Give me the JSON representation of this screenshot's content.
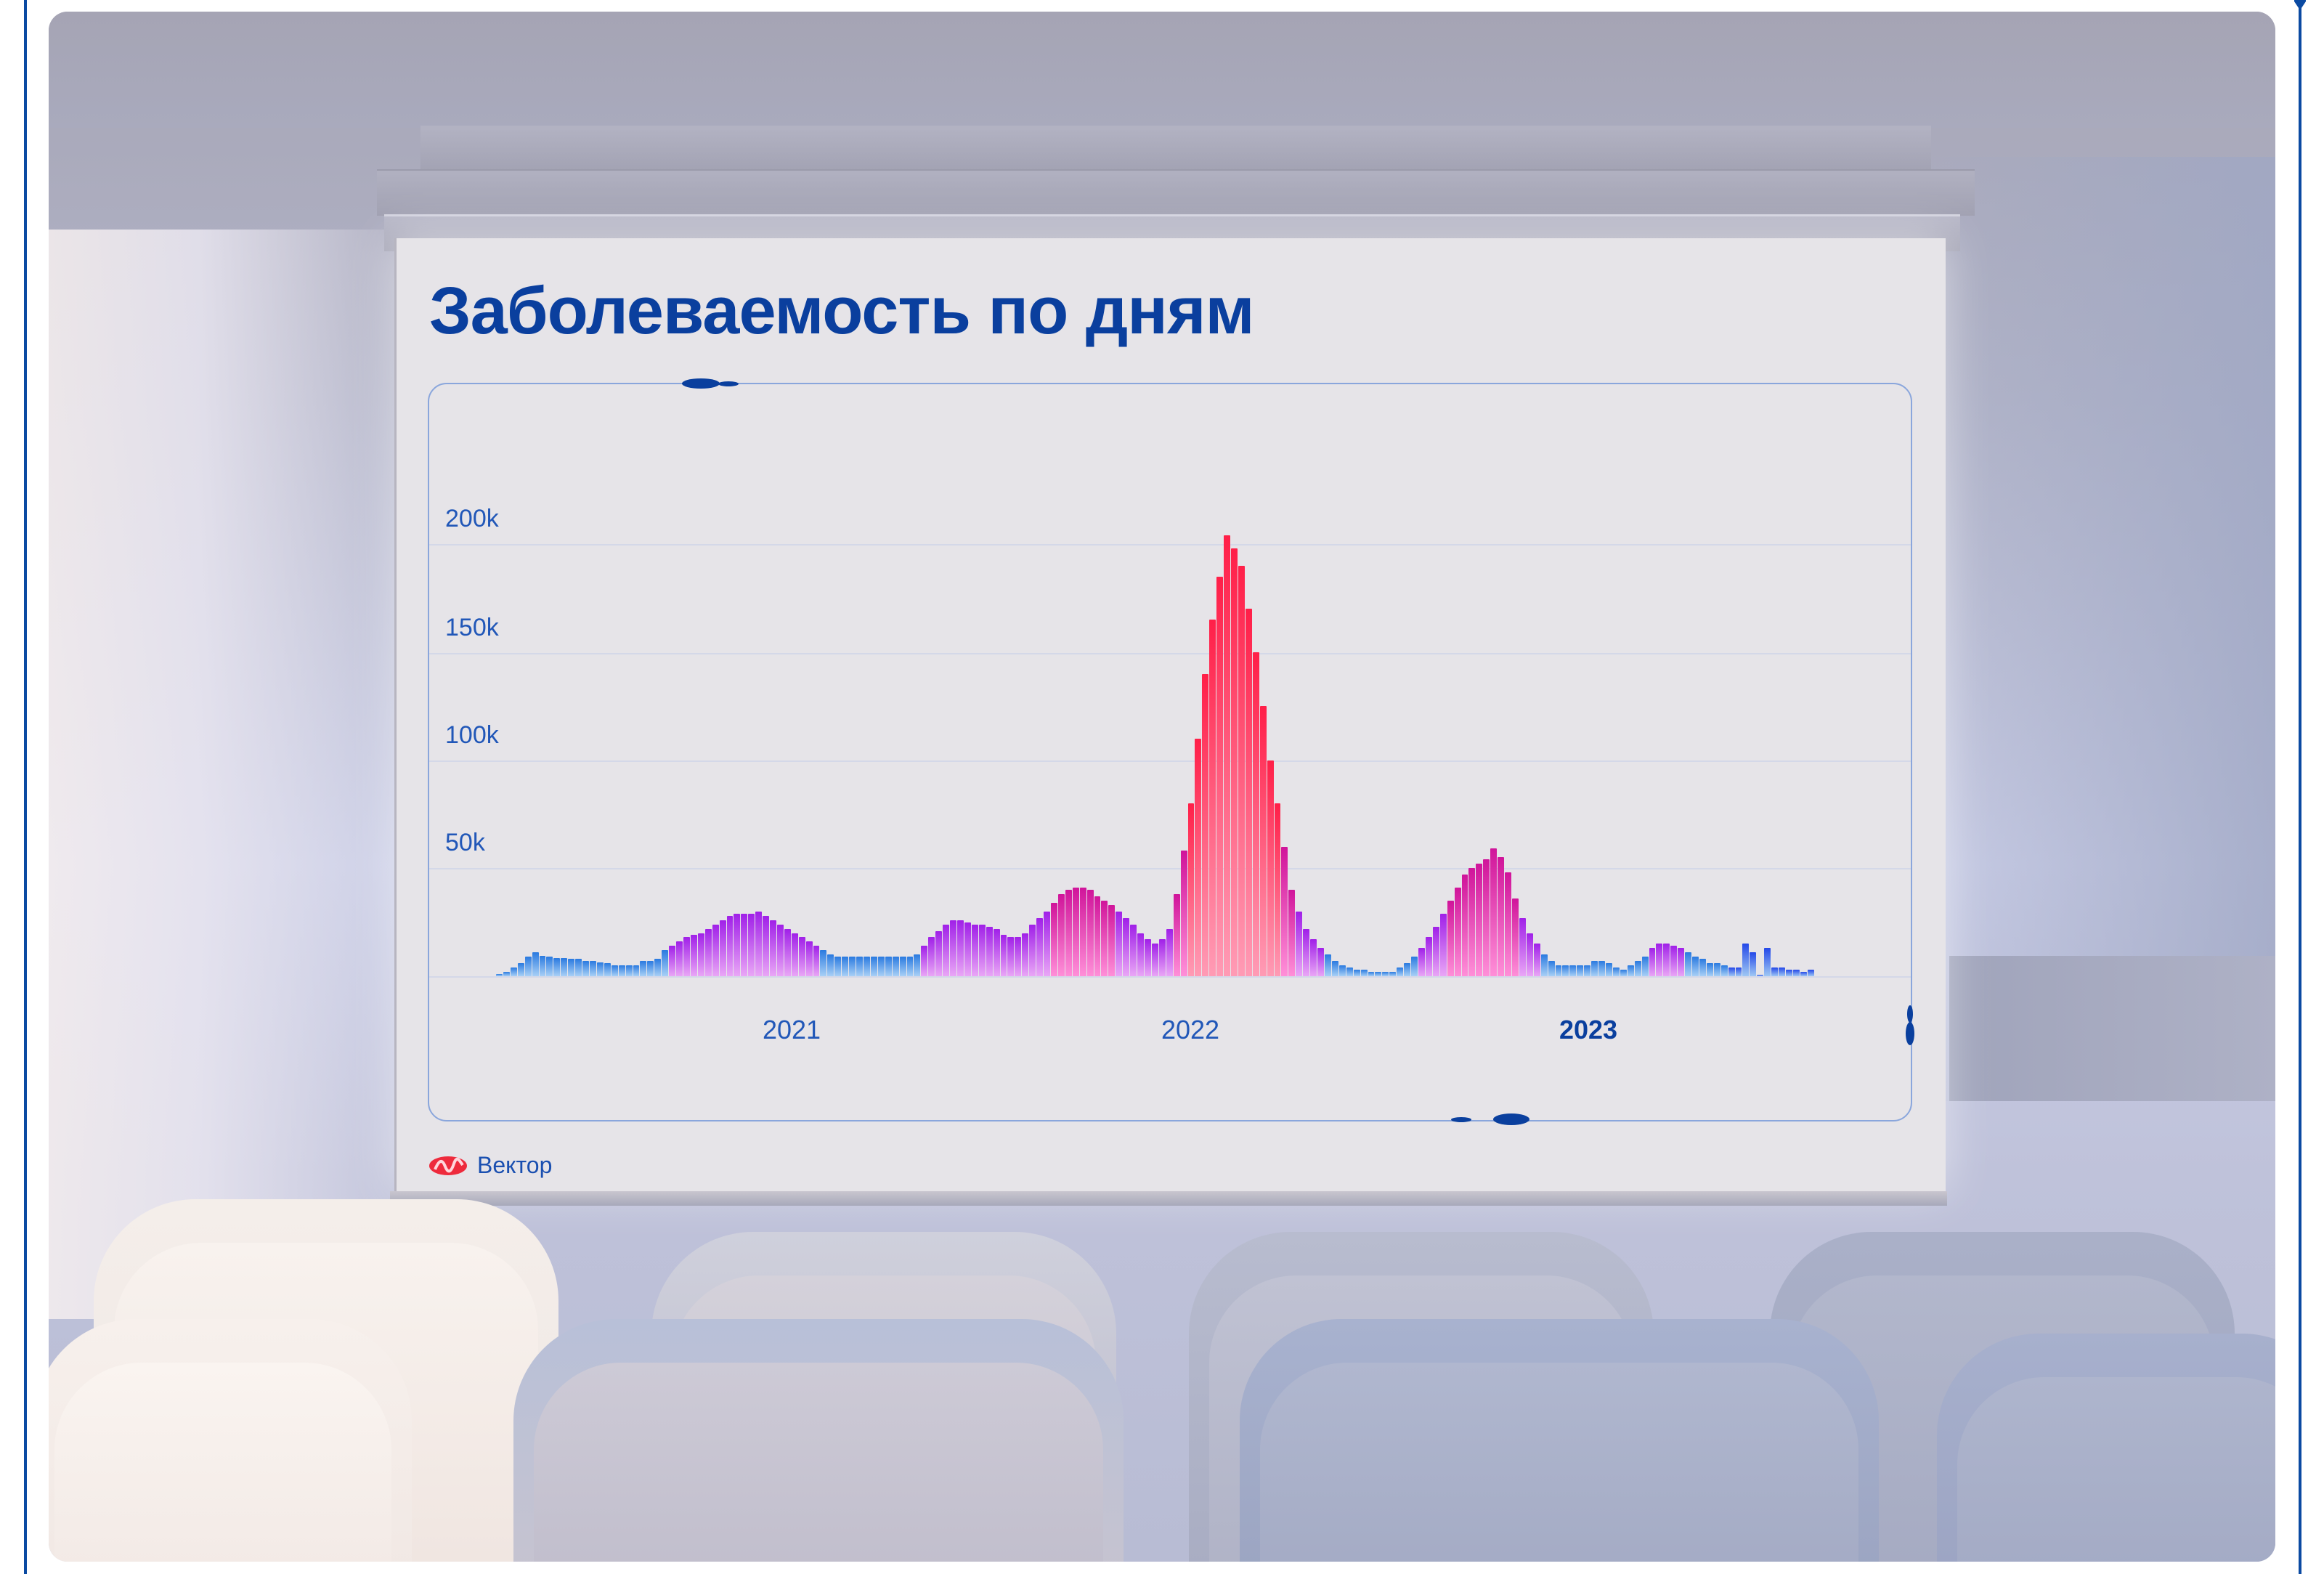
{
  "slide": {
    "title": "Заболеваемость по дням",
    "logo_text": "Вектор",
    "logo_icon": "vector-wave-logo"
  },
  "colors": {
    "title": "#0a3f9e",
    "axis_text": "#2157b8",
    "low_bar": "#2a7ae0",
    "mid_bar": "#a020e8",
    "high_bar": "#ff1f48",
    "logo_red": "#ee2a3c"
  },
  "chart_data": {
    "type": "bar",
    "title": "Заболеваемость по дням",
    "xlabel": "",
    "ylabel": "",
    "ylim": [
      0,
      200000
    ],
    "y_ticks": [
      "50k",
      "100k",
      "150k",
      "200k"
    ],
    "y_tick_values": [
      50000,
      100000,
      150000,
      200000
    ],
    "x_ticks": [
      "2021",
      "2022",
      "2023"
    ],
    "x_tick_bold": "2023",
    "grid": true,
    "legend": null,
    "x_range": [
      "2020 (approx. April)",
      "2023 (approx. Jun)"
    ],
    "values": [
      1000,
      2000,
      4000,
      6000,
      9000,
      11000,
      9500,
      9000,
      8500,
      8500,
      8000,
      8000,
      7000,
      7000,
      6500,
      6000,
      5000,
      5000,
      5000,
      5000,
      7000,
      7000,
      8000,
      12000,
      14000,
      16000,
      18000,
      19000,
      20000,
      22000,
      24000,
      26000,
      28000,
      29000,
      29000,
      29000,
      30000,
      28000,
      26000,
      24000,
      22000,
      20000,
      18000,
      16000,
      14000,
      12000,
      10000,
      9000,
      9000,
      9000,
      9000,
      9000,
      9000,
      9000,
      9000,
      9000,
      9000,
      9000,
      10000,
      14000,
      18000,
      21000,
      24000,
      26000,
      26000,
      25000,
      24000,
      24000,
      23000,
      22000,
      19000,
      18000,
      18000,
      20000,
      24000,
      27000,
      30000,
      34000,
      38000,
      40000,
      41000,
      41000,
      40000,
      37000,
      35000,
      33000,
      30000,
      27000,
      24000,
      20000,
      17000,
      15000,
      17000,
      22000,
      38000,
      58000,
      80000,
      110000,
      140000,
      165000,
      185000,
      204000,
      198000,
      190000,
      170000,
      150000,
      125000,
      100000,
      80000,
      60000,
      40000,
      30000,
      22000,
      17000,
      13000,
      10000,
      7000,
      5000,
      4000,
      3000,
      3000,
      2000,
      2000,
      2000,
      2000,
      4000,
      6000,
      9000,
      13000,
      18000,
      23000,
      29000,
      35000,
      41000,
      47000,
      50000,
      52000,
      54000,
      59000,
      55000,
      48000,
      36000,
      27000,
      20000,
      15000,
      10000,
      7000,
      5000,
      5000,
      5000,
      5000,
      5000,
      7000,
      7000,
      6000,
      4000,
      3000,
      5000,
      7000,
      9000,
      13000,
      15000,
      15000,
      14000,
      13000,
      11000,
      9000,
      8000,
      6000,
      6000,
      5000,
      4000,
      4000,
      15000,
      11000,
      0,
      13000,
      4000,
      4000,
      3000,
      3000,
      2000,
      3000
    ]
  }
}
